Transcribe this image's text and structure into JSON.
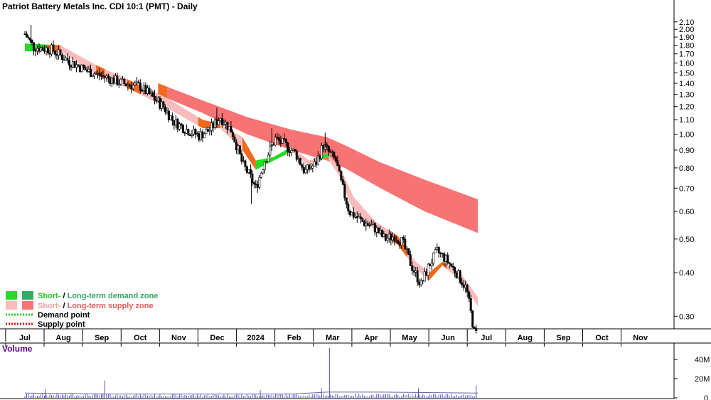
{
  "title": "Patriot Battery Metals Inc. CDI 10:1 (PMT) - Daily",
  "volume_label": "Volume",
  "legend": {
    "demand_zone_short": "Short-",
    "demand_zone_sep": " / ",
    "demand_zone_long": "Long-term demand zone",
    "supply_zone_short": "Short-",
    "supply_zone_sep": " / ",
    "supply_zone_long": "Long-term supply zone",
    "demand_point": "Demand point",
    "supply_point": "Supply point"
  },
  "colors": {
    "candle": "#000000",
    "short_demand": "#22dd22",
    "long_demand": "#33aa66",
    "short_supply": "#f9bcbc",
    "long_supply": "#f87474",
    "supply_fill_orange": "#f06a1e",
    "demand_point": "#22cc22",
    "supply_point": "#dd1111",
    "volume_bar": "#5555cc",
    "volume_avg": "#6666aa",
    "title": "#000000",
    "volume_title": "#660088"
  },
  "chart_data": [
    {
      "type": "candlestick",
      "title": "Patriot Battery Metals Inc. CDI 10:1 (PMT) - Daily",
      "x_tick_labels": [
        "Jul",
        "Aug",
        "Sep",
        "Oct",
        "Nov",
        "Dec",
        "2024",
        "Feb",
        "Mar",
        "Apr",
        "May",
        "Jun",
        "Jul",
        "Aug",
        "Sep",
        "Oct",
        "Nov"
      ],
      "y_tick_labels": [
        "0.30",
        "0.40",
        "0.50",
        "0.60",
        "0.70",
        "0.80",
        "0.90",
        "1.00",
        "1.10",
        "1.20",
        "1.30",
        "1.40",
        "1.50",
        "1.60",
        "1.70",
        "1.80",
        "1.90",
        "2.00",
        "2.10"
      ],
      "y_axis": "right",
      "y_scale": "log",
      "price_path": [
        [
          0,
          1.94
        ],
        [
          1,
          1.78
        ],
        [
          3,
          1.75
        ],
        [
          5,
          1.62
        ],
        [
          7,
          1.52
        ],
        [
          9,
          1.46
        ],
        [
          11,
          1.4
        ],
        [
          13,
          1.37
        ],
        [
          14.3,
          1.28
        ],
        [
          15.6,
          1.2
        ],
        [
          16.7,
          1.09
        ],
        [
          18.2,
          1.03
        ],
        [
          19.6,
          0.99
        ],
        [
          20.8,
          1.03
        ],
        [
          22,
          1.12
        ],
        [
          23.3,
          1.02
        ],
        [
          24.5,
          0.82
        ],
        [
          25.3,
          0.76
        ],
        [
          26,
          0.7
        ],
        [
          27,
          0.84
        ],
        [
          28.2,
          0.97
        ],
        [
          29.3,
          0.93
        ],
        [
          30.5,
          0.88
        ],
        [
          31.5,
          0.78
        ],
        [
          32.7,
          0.82
        ],
        [
          33.6,
          0.93
        ],
        [
          34.3,
          0.88
        ],
        [
          35,
          0.84
        ],
        [
          35.5,
          0.74
        ],
        [
          36.5,
          0.6
        ],
        [
          38,
          0.56
        ],
        [
          39.3,
          0.54
        ],
        [
          40.5,
          0.5
        ],
        [
          41.6,
          0.51
        ],
        [
          42.5,
          0.49
        ],
        [
          43.5,
          0.42
        ],
        [
          44.6,
          0.37
        ],
        [
          45.5,
          0.42
        ],
        [
          46.4,
          0.46
        ],
        [
          47.3,
          0.44
        ],
        [
          48.6,
          0.4
        ],
        [
          49.7,
          0.36
        ],
        [
          50.6,
          0.27
        ],
        [
          51,
          0.265
        ]
      ],
      "highlights": [
        [
          0.7,
          2.06
        ],
        [
          14.6,
          1.34
        ],
        [
          21.6,
          1.19
        ],
        [
          25.5,
          0.63
        ],
        [
          27.8,
          1.04
        ],
        [
          33.8,
          1.01
        ]
      ],
      "short_term_zone": {
        "upper": [
          [
            0,
            1.82
          ],
          [
            4,
            1.8
          ],
          [
            8,
            1.58
          ],
          [
            12,
            1.42
          ],
          [
            16,
            1.27
          ],
          [
            20,
            1.1
          ],
          [
            22,
            1.07
          ],
          [
            24.5,
            0.98
          ],
          [
            26,
            0.84
          ],
          [
            28,
            0.86
          ],
          [
            30,
            0.92
          ],
          [
            32,
            0.84
          ],
          [
            34,
            0.88
          ],
          [
            35.5,
            0.8
          ],
          [
            37,
            0.66
          ],
          [
            39.5,
            0.56
          ],
          [
            42,
            0.51
          ],
          [
            44,
            0.43
          ],
          [
            45.5,
            0.4
          ],
          [
            47,
            0.43
          ],
          [
            49,
            0.4
          ],
          [
            51,
            0.34
          ]
        ],
        "lower": [
          [
            0,
            1.73
          ],
          [
            4,
            1.73
          ],
          [
            8,
            1.48
          ],
          [
            12,
            1.34
          ],
          [
            16,
            1.19
          ],
          [
            20,
            1.04
          ],
          [
            22,
            1.04
          ],
          [
            24.5,
            0.9
          ],
          [
            26,
            0.79
          ],
          [
            28,
            0.84
          ],
          [
            30,
            0.89
          ],
          [
            32,
            0.81
          ],
          [
            34,
            0.86
          ],
          [
            35.5,
            0.75
          ],
          [
            37,
            0.6
          ],
          [
            39.5,
            0.53
          ],
          [
            42,
            0.48
          ],
          [
            44,
            0.41
          ],
          [
            45.5,
            0.38
          ],
          [
            47,
            0.42
          ],
          [
            49,
            0.38
          ],
          [
            51,
            0.32
          ]
        ]
      },
      "long_term_zone": {
        "upper": [
          [
            15,
            1.4
          ],
          [
            20,
            1.25
          ],
          [
            25,
            1.12
          ],
          [
            30,
            1.03
          ],
          [
            34,
            0.98
          ],
          [
            36,
            0.93
          ],
          [
            40,
            0.83
          ],
          [
            45,
            0.74
          ],
          [
            51,
            0.65
          ]
        ],
        "lower": [
          [
            15,
            1.3
          ],
          [
            20,
            1.15
          ],
          [
            25,
            1.0
          ],
          [
            30,
            0.9
          ],
          [
            34,
            0.84
          ],
          [
            36,
            0.8
          ],
          [
            40,
            0.7
          ],
          [
            45,
            0.6
          ],
          [
            51,
            0.52
          ]
        ]
      },
      "demand_segments": [
        [
          0,
          2.5
        ],
        [
          26,
          29.5
        ],
        [
          33.2,
          34.2
        ]
      ],
      "supply_segments": [
        [
          2.5,
          4
        ],
        [
          8,
          9
        ],
        [
          11.5,
          13
        ],
        [
          19.5,
          22
        ],
        [
          24.5,
          26
        ],
        [
          41.5,
          43
        ],
        [
          45.5,
          47.5
        ]
      ],
      "long_zone_start_segment": [
        15,
        16
      ]
    },
    {
      "type": "bar",
      "title": "Volume",
      "y_tick_labels": [
        "0",
        "20M",
        "40M"
      ],
      "ylim": [
        0,
        50
      ],
      "y_unit": "M",
      "spikes": [
        [
          9,
          18
        ],
        [
          34.3,
          52
        ],
        [
          44.3,
          10
        ],
        [
          2.3,
          9
        ],
        [
          26.5,
          8
        ],
        [
          33.4,
          10
        ],
        [
          50.8,
          13
        ]
      ],
      "baseline": 3,
      "average": [
        [
          0,
          5
        ],
        [
          10,
          4
        ],
        [
          20,
          4
        ],
        [
          30,
          4
        ],
        [
          34,
          6
        ],
        [
          40,
          6
        ],
        [
          51,
          5
        ]
      ]
    }
  ]
}
